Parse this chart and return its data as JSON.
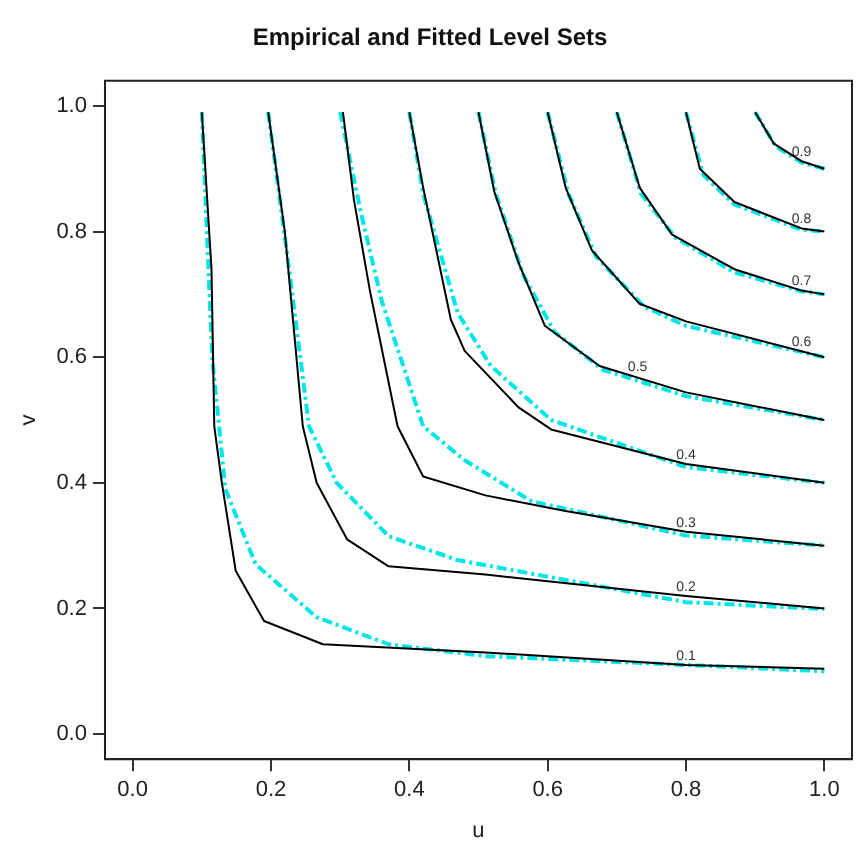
{
  "chart_data": {
    "type": "line",
    "title": "Empirical and Fitted Level Sets",
    "xlabel": "u",
    "ylabel": "v",
    "xlim": [
      -0.04,
      1.04
    ],
    "ylim": [
      -0.04,
      1.04
    ],
    "xticks": [
      {
        "value": 0,
        "label": "0.0"
      },
      0.2,
      0.4,
      0.6,
      0.8,
      {
        "value": 1,
        "label": "1.0"
      }
    ],
    "yticks": [
      {
        "value": 0,
        "label": "0.0"
      },
      0.2,
      0.4,
      0.6,
      0.8,
      {
        "value": 1,
        "label": "1.0"
      }
    ],
    "grid": false,
    "legend": false,
    "marker": "none",
    "series": [
      {
        "color": "#000000",
        "line_style": "solid",
        "x": [
          0.1,
          0.114,
          0.118,
          0.129,
          0.149,
          0.19,
          0.275,
          0.51,
          0.8,
          1.0
        ],
        "values": [
          0.99,
          0.74,
          0.49,
          0.4,
          0.26,
          0.18,
          0.143,
          0.13,
          0.11,
          0.104
        ]
      },
      {
        "color": "#00e5e5",
        "line_style": "dashed",
        "x": [
          0.1,
          0.115,
          0.134,
          0.178,
          0.266,
          0.37,
          0.51,
          0.8,
          1.0
        ],
        "values": [
          0.99,
          0.6,
          0.39,
          0.27,
          0.186,
          0.143,
          0.124,
          0.11,
          0.1
        ]
      },
      {
        "color": "#000000",
        "line_style": "solid",
        "x": [
          0.196,
          0.22,
          0.246,
          0.266,
          0.31,
          0.37,
          0.51,
          0.8,
          1.0
        ],
        "values": [
          0.99,
          0.8,
          0.49,
          0.4,
          0.31,
          0.267,
          0.254,
          0.22,
          0.2
        ]
      },
      {
        "color": "#00e5e5",
        "line_style": "dashed",
        "x": [
          0.196,
          0.225,
          0.255,
          0.295,
          0.37,
          0.47,
          0.8,
          1.0
        ],
        "values": [
          0.99,
          0.75,
          0.49,
          0.4,
          0.315,
          0.277,
          0.21,
          0.199
        ]
      },
      {
        "color": "#000000",
        "line_style": "solid",
        "x": [
          0.304,
          0.32,
          0.343,
          0.383,
          0.42,
          0.51,
          0.626,
          0.8,
          1.0
        ],
        "values": [
          0.99,
          0.85,
          0.706,
          0.49,
          0.41,
          0.38,
          0.355,
          0.322,
          0.3
        ]
      },
      {
        "color": "#00e5e5",
        "line_style": "dashed",
        "x": [
          0.3,
          0.33,
          0.36,
          0.42,
          0.48,
          0.576,
          0.8,
          1.0
        ],
        "values": [
          0.99,
          0.83,
          0.69,
          0.49,
          0.436,
          0.371,
          0.316,
          0.3
        ]
      },
      {
        "color": "#000000",
        "line_style": "solid",
        "x": [
          0.4,
          0.42,
          0.46,
          0.48,
          0.558,
          0.605,
          0.8,
          1.0
        ],
        "values": [
          0.99,
          0.87,
          0.66,
          0.61,
          0.52,
          0.485,
          0.43,
          0.4
        ]
      },
      {
        "color": "#00e5e5",
        "line_style": "dashed",
        "x": [
          0.4,
          0.42,
          0.47,
          0.518,
          0.605,
          0.8,
          1.0
        ],
        "values": [
          0.99,
          0.86,
          0.67,
          0.586,
          0.5,
          0.425,
          0.4
        ]
      },
      {
        "color": "#000000",
        "line_style": "solid",
        "x": [
          0.5,
          0.523,
          0.558,
          0.596,
          0.675,
          0.8,
          1.0
        ],
        "values": [
          0.99,
          0.863,
          0.75,
          0.65,
          0.586,
          0.544,
          0.5
        ]
      },
      {
        "color": "#00e5e5",
        "line_style": "dashed",
        "x": [
          0.5,
          0.525,
          0.565,
          0.61,
          0.68,
          0.8,
          1.0
        ],
        "values": [
          0.99,
          0.86,
          0.73,
          0.64,
          0.58,
          0.538,
          0.5
        ]
      },
      {
        "color": "#000000",
        "line_style": "solid",
        "x": [
          0.6,
          0.626,
          0.664,
          0.733,
          0.8,
          1.0
        ],
        "values": [
          0.99,
          0.87,
          0.77,
          0.685,
          0.657,
          0.6
        ]
      },
      {
        "color": "#00e5e5",
        "line_style": "dashed",
        "x": [
          0.6,
          0.63,
          0.67,
          0.74,
          0.8,
          1.0
        ],
        "values": [
          0.99,
          0.86,
          0.76,
          0.68,
          0.65,
          0.6
        ]
      },
      {
        "color": "#000000",
        "line_style": "solid",
        "x": [
          0.7,
          0.733,
          0.78,
          0.87,
          0.967,
          1.0
        ],
        "values": [
          0.99,
          0.87,
          0.795,
          0.74,
          0.706,
          0.7
        ]
      },
      {
        "color": "#00e5e5",
        "line_style": "dashed",
        "x": [
          0.7,
          0.735,
          0.785,
          0.87,
          0.967,
          1.0
        ],
        "values": [
          0.99,
          0.86,
          0.79,
          0.735,
          0.705,
          0.7
        ]
      },
      {
        "color": "#000000",
        "line_style": "solid",
        "x": [
          0.8,
          0.82,
          0.87,
          0.967,
          1.0
        ],
        "values": [
          0.99,
          0.9,
          0.847,
          0.805,
          0.8
        ]
      },
      {
        "color": "#00e5e5",
        "line_style": "dashed",
        "x": [
          0.8,
          0.825,
          0.87,
          0.967,
          1.0
        ],
        "values": [
          0.99,
          0.89,
          0.843,
          0.803,
          0.8
        ]
      },
      {
        "color": "#000000",
        "line_style": "solid",
        "x": [
          0.9,
          0.927,
          0.967,
          1.0
        ],
        "values": [
          0.99,
          0.94,
          0.912,
          0.9
        ]
      },
      {
        "color": "#00e5e5",
        "line_style": "dashed",
        "x": [
          0.9,
          0.93,
          0.967,
          1.0
        ],
        "values": [
          0.99,
          0.935,
          0.91,
          0.9
        ]
      }
    ],
    "annotations": [
      {
        "text": "0.1",
        "x": 0.8,
        "y": 0.11
      },
      {
        "text": "0.2",
        "x": 0.8,
        "y": 0.22
      },
      {
        "text": "0.3",
        "x": 0.8,
        "y": 0.322
      },
      {
        "text": "0.4",
        "x": 0.8,
        "y": 0.43
      },
      {
        "text": "0.5",
        "x": 0.73,
        "y": 0.57
      },
      {
        "text": "0.6",
        "x": 0.967,
        "y": 0.61
      },
      {
        "text": "0.7",
        "x": 0.967,
        "y": 0.706
      },
      {
        "text": "0.8",
        "x": 0.967,
        "y": 0.805
      },
      {
        "text": "0.9",
        "x": 0.967,
        "y": 0.912
      }
    ]
  }
}
